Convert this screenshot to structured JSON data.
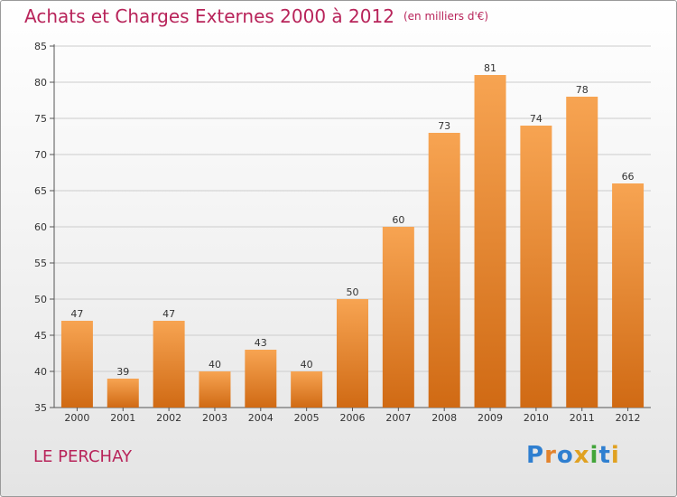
{
  "header": {
    "title": "Achats et Charges Externes 2000 à 2012",
    "unit": "(en milliers d'€)"
  },
  "footer": {
    "commune": "LE PERCHAY",
    "logo": "Proxiti"
  },
  "colors": {
    "bar_light": "#f7a452",
    "bar_dark": "#d06a14",
    "title": "#b8245a",
    "grid": "#cccccc"
  },
  "chart_data": {
    "type": "bar",
    "title": "Achats et Charges Externes 2000 à 2012",
    "categories": [
      "2000",
      "2001",
      "2002",
      "2003",
      "2004",
      "2005",
      "2006",
      "2007",
      "2008",
      "2009",
      "2010",
      "2011",
      "2012"
    ],
    "values": [
      47,
      39,
      47,
      40,
      43,
      40,
      50,
      60,
      73,
      81,
      74,
      78,
      66
    ],
    "ylim": [
      35,
      85
    ],
    "yticks": [
      35,
      40,
      45,
      50,
      55,
      60,
      65,
      70,
      75,
      80,
      85
    ],
    "grid": true,
    "xlabel": "",
    "ylabel": ""
  }
}
